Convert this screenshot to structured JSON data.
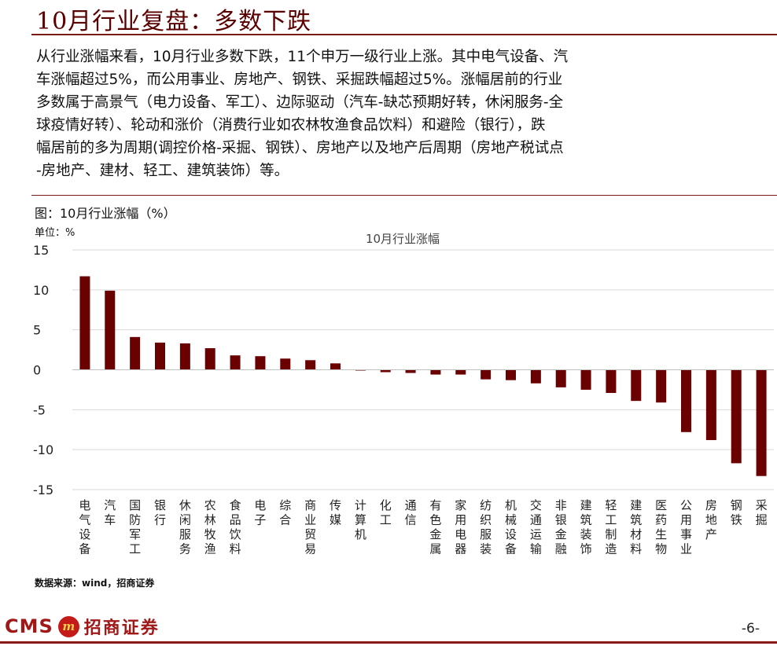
{
  "page": {
    "title": "10月行业复盘：多数下跌",
    "paragraph_lines": [
      "从行业涨幅来看，10月行业多数下跌，11个申万一级行业上涨。其中电气设备、汽",
      "车涨幅超过5%，而公用事业、房地产、钢铁、采掘跌幅超过5%。涨幅居前的行业",
      "多数属于高景气（电力设备、军工）、边际驱动（汽车-缺芯预期好转，休闲服务-全",
      "球疫情好转）、轮动和涨价（消费行业如农林牧渔食品饮料）和避险（银行），跌",
      "幅居前的多为周期(调控价格-采掘、钢铁）、房地产以及地产后周期（房地产税试点",
      "-房地产、建材、轻工、建筑装饰）等。"
    ],
    "figure_caption": "图：10月行业涨幅（%）",
    "unit_label": "单位：%",
    "source": "数据来源：wind，招商证券",
    "logo_text": "CMS",
    "logo_badge": "m",
    "logo_cn": "招商证券",
    "page_number": "-6-"
  },
  "chart_data": {
    "type": "bar",
    "title": "10月行业涨幅",
    "ylim": [
      -15,
      15
    ],
    "yticks": [
      15,
      10,
      5,
      0,
      -5,
      -10,
      -15
    ],
    "grid": true,
    "bar_color": "#6b0000",
    "categories": [
      "电气设备",
      "汽车",
      "国防军工",
      "银行",
      "休闲服务",
      "农林牧渔",
      "食品饮料",
      "电子",
      "综合",
      "商业贸易",
      "传媒",
      "计算机",
      "化工",
      "通信",
      "有色金属",
      "家用电器",
      "纺织服装",
      "机械设备",
      "交通运输",
      "非银金融",
      "建筑装饰",
      "轻工制造",
      "建筑材料",
      "医药生物",
      "公用事业",
      "房地产",
      "钢铁",
      "采掘"
    ],
    "values": [
      11.7,
      9.9,
      4.1,
      3.4,
      3.3,
      2.7,
      1.8,
      1.7,
      1.4,
      1.2,
      0.8,
      -0.1,
      -0.3,
      -0.4,
      -0.6,
      -0.6,
      -1.2,
      -1.3,
      -1.7,
      -2.2,
      -2.5,
      -2.9,
      -3.9,
      -4.1,
      -7.8,
      -8.8,
      -11.7,
      -13.3
    ]
  }
}
